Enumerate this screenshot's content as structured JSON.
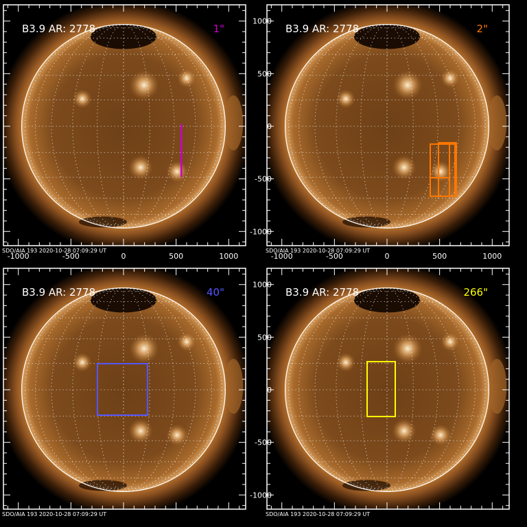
{
  "panels": [
    {
      "title": "B3.9 AR: 2778",
      "cadence": "1\"",
      "color": "#cc00cc",
      "footer": "SDO/AIA 193  2020-10-28 07:09:29 UT",
      "overlay": "slit",
      "show_xlabels": true,
      "show_ylabels": false
    },
    {
      "title": "B3.9 AR: 2778",
      "cadence": "2\"",
      "color": "#ff7700",
      "footer": "SDO/AIA 193  2020-10-28 07:09:29 UT",
      "overlay": "raster",
      "show_xlabels": true,
      "show_ylabels": true
    },
    {
      "title": "B3.9 AR: 2778",
      "cadence": "40\"",
      "color": "#5555ff",
      "footer": "SDO/AIA 193  2020-10-28 07:09:29 UT",
      "overlay": "box-wide",
      "show_xlabels": false,
      "show_ylabels": false
    },
    {
      "title": "B3.9 AR: 2778",
      "cadence": "266\"",
      "color": "#ffff00",
      "footer": "SDO/AIA 193  2020-10-28 07:09:29 UT",
      "overlay": "box-narrow",
      "show_xlabels": false,
      "show_ylabels": true
    }
  ],
  "axis": {
    "x_ticks": [
      "-1000",
      "-500",
      "0",
      "500",
      "1000"
    ],
    "y_ticks": [
      "1000",
      "500",
      "0",
      "-500",
      "-1000"
    ]
  }
}
